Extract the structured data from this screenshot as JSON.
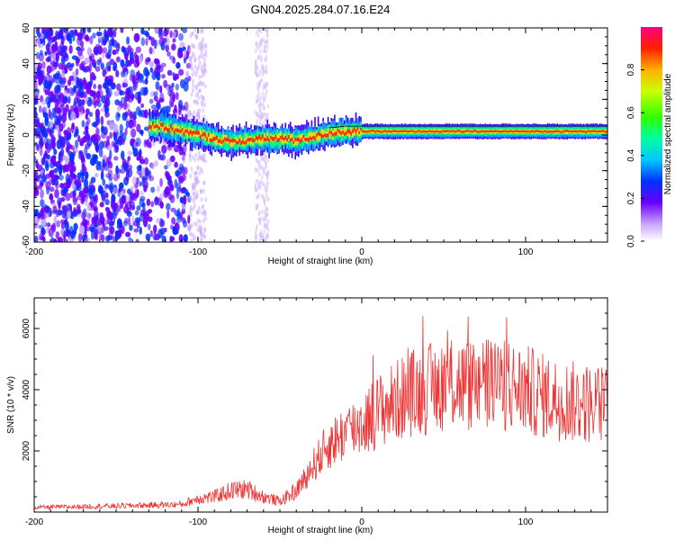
{
  "title": "GN04.2025.284.07.16.E24",
  "chart_data": [
    {
      "type": "heatmap",
      "xlabel": "Height of straight line (km)",
      "ylabel": "Frequency (Hz)",
      "xlim": [
        -200,
        150
      ],
      "ylim": [
        -60,
        60
      ],
      "xticks": [
        -200,
        -100,
        0,
        100
      ],
      "yticks": [
        60,
        40,
        20,
        0,
        -20,
        -40,
        -60
      ],
      "colorbar": {
        "label": "Normalized spectral amplitude",
        "range": [
          0,
          1
        ],
        "ticks": [
          0.0,
          0.2,
          0.4,
          0.6,
          0.8
        ]
      },
      "ridge": {
        "x": [
          -125,
          -110,
          -100,
          -90,
          -80,
          -70,
          -60,
          -50,
          -40,
          -30,
          -20,
          -10,
          0,
          50,
          100,
          150
        ],
        "y": [
          5,
          2,
          0,
          -2,
          -4,
          -3,
          -2,
          -2,
          -3,
          -1,
          1,
          2,
          2,
          2,
          2,
          2
        ]
      }
    },
    {
      "type": "line",
      "xlabel": "Height of straight line (km)",
      "ylabel": "SNR (10 * v/v)",
      "xlim": [
        -200,
        150
      ],
      "ylim": [
        0,
        7000
      ],
      "xticks": [
        -200,
        -100,
        0,
        100
      ],
      "yticks": [
        2000,
        4000,
        6000
      ],
      "color": "#ee3333",
      "envelope": {
        "x": [
          -200,
          -150,
          -110,
          -100,
          -90,
          -80,
          -70,
          -60,
          -50,
          -40,
          -30,
          -20,
          -10,
          0,
          10,
          20,
          30,
          40,
          50,
          60,
          70,
          80,
          90,
          100,
          110,
          120,
          130,
          140,
          150
        ],
        "y": [
          150,
          200,
          250,
          450,
          500,
          700,
          750,
          500,
          350,
          700,
          1500,
          2200,
          2600,
          2900,
          3300,
          3600,
          3900,
          4000,
          4200,
          4200,
          4100,
          4150,
          4100,
          4000,
          3800,
          3700,
          3600,
          3550,
          3500
        ]
      }
    }
  ]
}
